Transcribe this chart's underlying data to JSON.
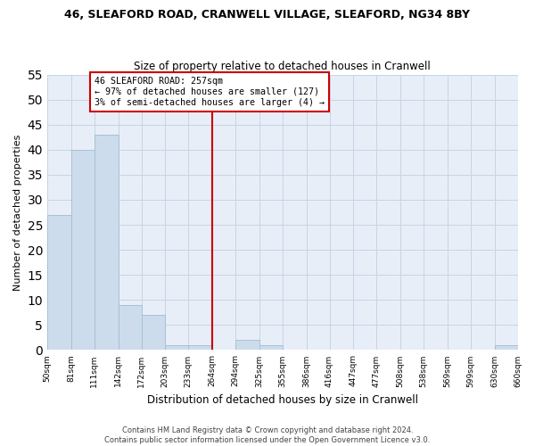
{
  "title_line1": "46, SLEAFORD ROAD, CRANWELL VILLAGE, SLEAFORD, NG34 8BY",
  "title_line2": "Size of property relative to detached houses in Cranwell",
  "xlabel": "Distribution of detached houses by size in Cranwell",
  "ylabel": "Number of detached properties",
  "bar_edges": [
    50,
    81,
    111,
    142,
    172,
    203,
    233,
    264,
    294,
    325,
    355,
    386,
    416,
    447,
    477,
    508,
    538,
    569,
    599,
    630,
    660
  ],
  "bar_heights": [
    27,
    40,
    43,
    9,
    7,
    1,
    1,
    0,
    2,
    1,
    0,
    0,
    0,
    0,
    0,
    0,
    0,
    0,
    0,
    1
  ],
  "bar_color": "#ccdcec",
  "bar_edge_color": "#a8c0d4",
  "grid_color": "#c8d4e4",
  "background_color": "#e8eef8",
  "vline_x": 264,
  "vline_color": "#cc0000",
  "annotation_text": "46 SLEAFORD ROAD: 257sqm\n← 97% of detached houses are smaller (127)\n3% of semi-detached houses are larger (4) →",
  "annotation_box_color": "#cc0000",
  "ylim": [
    0,
    55
  ],
  "yticks": [
    0,
    5,
    10,
    15,
    20,
    25,
    30,
    35,
    40,
    45,
    50,
    55
  ],
  "footnote": "Contains HM Land Registry data © Crown copyright and database right 2024.\nContains public sector information licensed under the Open Government Licence v3.0.",
  "tick_labels": [
    "50sqm",
    "81sqm",
    "111sqm",
    "142sqm",
    "172sqm",
    "203sqm",
    "233sqm",
    "264sqm",
    "294sqm",
    "325sqm",
    "355sqm",
    "386sqm",
    "416sqm",
    "447sqm",
    "477sqm",
    "508sqm",
    "538sqm",
    "569sqm",
    "599sqm",
    "630sqm",
    "660sqm"
  ]
}
